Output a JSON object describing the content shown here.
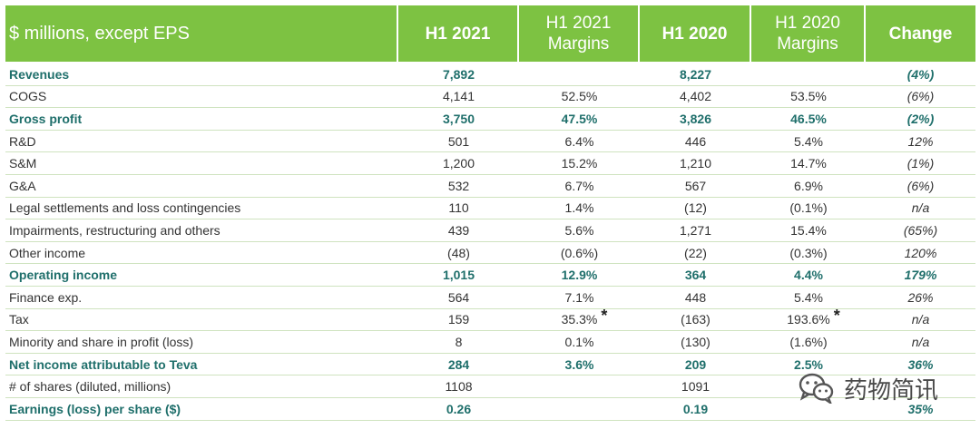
{
  "header": {
    "col0": "$ millions, except EPS",
    "col1": "H1 2021",
    "col2": "H1 2021 Margins",
    "col3": "H1 2020",
    "col4": "H1 2020 Margins",
    "col5": "Change"
  },
  "rows": [
    {
      "label": "Revenues",
      "h1_2021": "7,892",
      "m2021": "",
      "h1_2020": "8,227",
      "m2020": "",
      "change": "(4%)",
      "bold": true
    },
    {
      "label": "COGS",
      "h1_2021": "4,141",
      "m2021": "52.5%",
      "h1_2020": "4,402",
      "m2020": "53.5%",
      "change": "(6%)",
      "bold": false
    },
    {
      "label": "Gross profit",
      "h1_2021": "3,750",
      "m2021": "47.5%",
      "h1_2020": "3,826",
      "m2020": "46.5%",
      "change": "(2%)",
      "bold": true
    },
    {
      "label": "R&D",
      "h1_2021": "501",
      "m2021": "6.4%",
      "h1_2020": "446",
      "m2020": "5.4%",
      "change": "12%",
      "bold": false
    },
    {
      "label": "S&M",
      "h1_2021": "1,200",
      "m2021": "15.2%",
      "h1_2020": "1,210",
      "m2020": "14.7%",
      "change": "(1%)",
      "bold": false
    },
    {
      "label": "G&A",
      "h1_2021": "532",
      "m2021": "6.7%",
      "h1_2020": "567",
      "m2020": "6.9%",
      "change": "(6%)",
      "bold": false
    },
    {
      "label": "Legal settlements and loss contingencies",
      "h1_2021": "110",
      "m2021": "1.4%",
      "h1_2020": "(12)",
      "m2020": "(0.1%)",
      "change": "n/a",
      "bold": false
    },
    {
      "label": "Impairments, restructuring and others",
      "h1_2021": "439",
      "m2021": "5.6%",
      "h1_2020": "1,271",
      "m2020": "15.4%",
      "change": "(65%)",
      "bold": false
    },
    {
      "label": "Other income",
      "h1_2021": "(48)",
      "m2021": "(0.6%)",
      "h1_2020": "(22)",
      "m2020": "(0.3%)",
      "change": "120%",
      "bold": false
    },
    {
      "label": "Operating income",
      "h1_2021": "1,015",
      "m2021": "12.9%",
      "h1_2020": "364",
      "m2020": "4.4%",
      "change": "179%",
      "bold": true
    },
    {
      "label": "Finance exp.",
      "h1_2021": "564",
      "m2021": "7.1%",
      "h1_2020": "448",
      "m2020": "5.4%",
      "change": "26%",
      "bold": false
    },
    {
      "label": "Tax",
      "h1_2021": "159",
      "m2021": "35.3%",
      "h1_2020": "(163)",
      "m2020": "193.6%",
      "change": "n/a",
      "bold": false,
      "star": "*"
    },
    {
      "label": "Minority and share in profit (loss)",
      "h1_2021": "8",
      "m2021": "0.1%",
      "h1_2020": "(130)",
      "m2020": "(1.6%)",
      "change": "n/a",
      "bold": false
    },
    {
      "label": "Net income attributable to Teva",
      "h1_2021": "284",
      "m2021": "3.6%",
      "h1_2020": "209",
      "m2020": "2.5%",
      "change": "36%",
      "bold": true
    },
    {
      "label": "# of shares (diluted, millions)",
      "h1_2021": "1108",
      "m2021": "",
      "h1_2020": "1091",
      "m2020": "",
      "change": "",
      "bold": false
    },
    {
      "label": "Earnings (loss) per share ($)",
      "h1_2021": "0.26",
      "m2021": "",
      "h1_2020": "0.19",
      "m2020": "",
      "change": "35%",
      "bold": true
    }
  ],
  "watermark": {
    "text": "药物简讯",
    "icon": "wechat-icon"
  },
  "colors": {
    "header_bg": "#7dc242",
    "bold_text": "#1f6f6b",
    "row_border": "#cfe3bf"
  }
}
